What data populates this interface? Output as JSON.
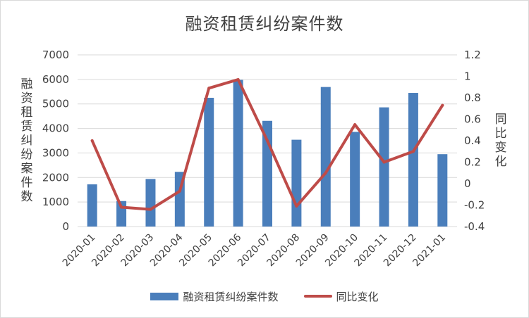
{
  "chart_data": {
    "type": "bar+line",
    "title": "融资租赁纠纷案件数",
    "categories": [
      "2020-01",
      "2020-02",
      "2020-03",
      "2020-04",
      "2020-05",
      "2020-06",
      "2020-07",
      "2020-08",
      "2020-09",
      "2020-10",
      "2020-11",
      "2020-12",
      "2021-01"
    ],
    "series": [
      {
        "name": "融资租赁纠纷案件数",
        "type": "bar",
        "axis": "left",
        "color": "#4a7ebb",
        "values": [
          1720,
          1040,
          1940,
          2230,
          5250,
          5980,
          4310,
          3540,
          5690,
          3860,
          4860,
          5450,
          2950
        ]
      },
      {
        "name": "同比变化",
        "type": "line",
        "axis": "right",
        "color": "#be4b48",
        "values": [
          0.4,
          -0.22,
          -0.24,
          -0.07,
          0.89,
          0.97,
          0.4,
          -0.21,
          0.1,
          0.55,
          0.2,
          0.3,
          0.73
        ]
      }
    ],
    "ylabel": "融资租赁纠纷案件数",
    "y2label": "同比变化",
    "ylim": [
      0,
      7000
    ],
    "y2lim": [
      -0.4,
      1.2
    ],
    "yticks": [
      "0",
      "1000",
      "2000",
      "3000",
      "4000",
      "5000",
      "6000",
      "7000"
    ],
    "y2ticks": [
      "-0.4",
      "-0.2",
      "0",
      "0.2",
      "0.4",
      "0.6",
      "0.8",
      "1",
      "1.2"
    ],
    "grid": true,
    "legend": "bottom"
  }
}
